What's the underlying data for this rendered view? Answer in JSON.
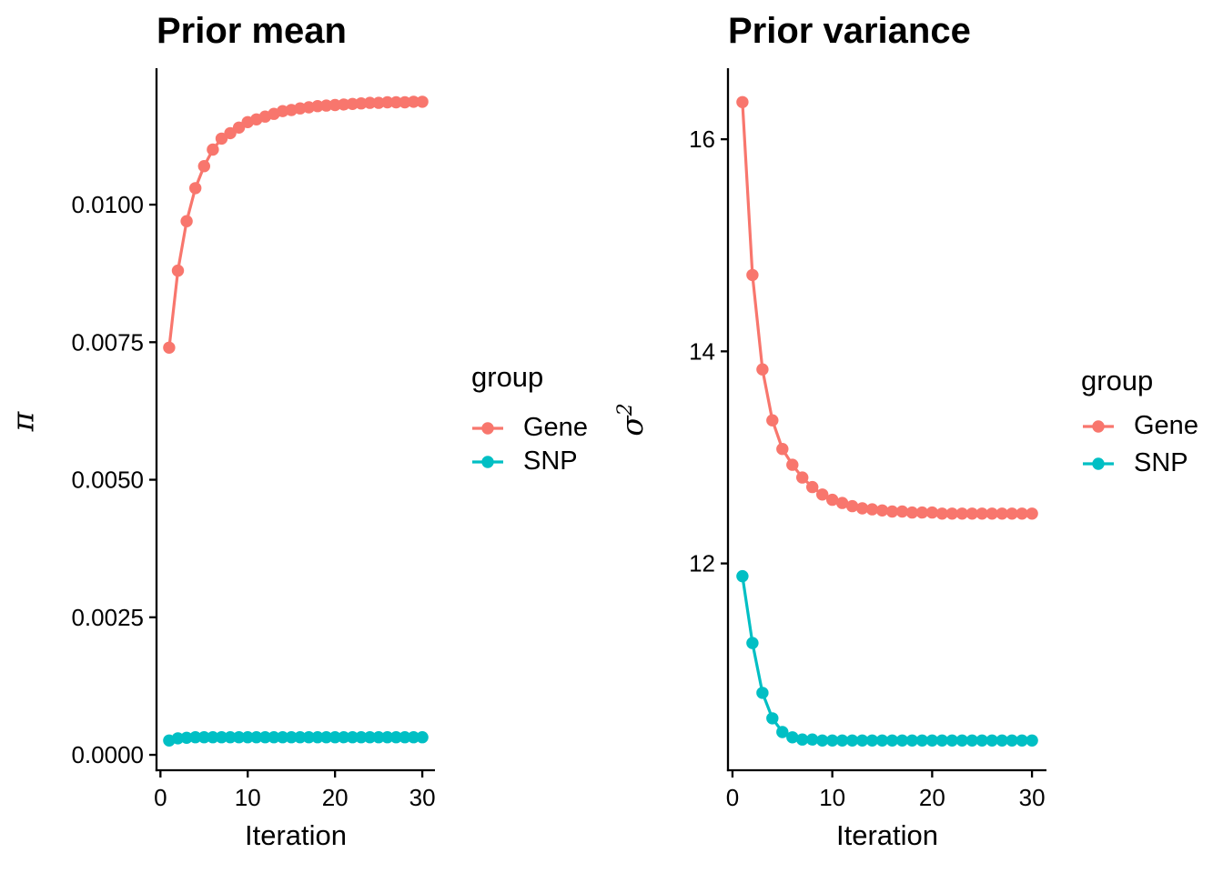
{
  "figure": {
    "background": "#FFFFFF",
    "text_color": "#000000",
    "axis_color": "#000000"
  },
  "chart_data": [
    {
      "type": "line",
      "title": "Prior mean",
      "xlabel": "Iteration",
      "ylabel": "π",
      "ylabel_exponent": "",
      "legend_title": "group",
      "legend_position": "right",
      "grid": false,
      "x": [
        1,
        2,
        3,
        4,
        5,
        6,
        7,
        8,
        9,
        10,
        11,
        12,
        13,
        14,
        15,
        16,
        17,
        18,
        19,
        20,
        21,
        22,
        23,
        24,
        25,
        26,
        27,
        28,
        29,
        30
      ],
      "series": [
        {
          "name": "Gene",
          "color": "#F8766D",
          "values": [
            0.0074,
            0.0088,
            0.0097,
            0.0103,
            0.0107,
            0.011,
            0.0112,
            0.0113,
            0.0114,
            0.0115,
            0.01155,
            0.0116,
            0.01165,
            0.0117,
            0.01172,
            0.01175,
            0.01177,
            0.01179,
            0.0118,
            0.01181,
            0.01182,
            0.01183,
            0.01184,
            0.01185,
            0.01185,
            0.01186,
            0.01186,
            0.01186,
            0.01187,
            0.01187
          ]
        },
        {
          "name": "SNP",
          "color": "#00BFC4",
          "values": [
            0.00026,
            0.0003,
            0.00031,
            0.00032,
            0.00032,
            0.00032,
            0.00032,
            0.00032,
            0.00032,
            0.00032,
            0.00032,
            0.00032,
            0.00032,
            0.00032,
            0.00032,
            0.00032,
            0.00032,
            0.00032,
            0.00032,
            0.00032,
            0.00032,
            0.00032,
            0.00032,
            0.00032,
            0.00032,
            0.00032,
            0.00032,
            0.00032,
            0.00032,
            0.00032
          ]
        }
      ],
      "xlim": [
        -0.45,
        31.45
      ],
      "ylim": [
        -0.00028,
        0.01248
      ],
      "xticks": [
        0,
        10,
        20,
        30
      ],
      "xtick_labels": [
        "0",
        "10",
        "20",
        "30"
      ],
      "yticks": [
        0.0,
        0.0025,
        0.005,
        0.0075,
        0.01
      ],
      "ytick_labels": [
        "0.0000",
        "0.0025",
        "0.0050",
        "0.0075",
        "0.0100"
      ]
    },
    {
      "type": "line",
      "title": "Prior variance",
      "xlabel": "Iteration",
      "ylabel": "σ",
      "ylabel_exponent": "2",
      "legend_title": "group",
      "legend_position": "right",
      "grid": false,
      "x": [
        1,
        2,
        3,
        4,
        5,
        6,
        7,
        8,
        9,
        10,
        11,
        12,
        13,
        14,
        15,
        16,
        17,
        18,
        19,
        20,
        21,
        22,
        23,
        24,
        25,
        26,
        27,
        28,
        29,
        30
      ],
      "series": [
        {
          "name": "Gene",
          "color": "#F8766D",
          "values": [
            16.35,
            14.72,
            13.83,
            13.35,
            13.08,
            12.93,
            12.81,
            12.72,
            12.65,
            12.6,
            12.57,
            12.54,
            12.52,
            12.51,
            12.5,
            12.49,
            12.49,
            12.48,
            12.48,
            12.48,
            12.47,
            12.47,
            12.47,
            12.47,
            12.47,
            12.47,
            12.47,
            12.47,
            12.47,
            12.47
          ]
        },
        {
          "name": "SNP",
          "color": "#00BFC4",
          "values": [
            11.88,
            11.25,
            10.78,
            10.54,
            10.41,
            10.36,
            10.34,
            10.34,
            10.33,
            10.33,
            10.33,
            10.33,
            10.33,
            10.33,
            10.33,
            10.33,
            10.33,
            10.33,
            10.33,
            10.33,
            10.33,
            10.33,
            10.33,
            10.33,
            10.33,
            10.33,
            10.33,
            10.33,
            10.33,
            10.33
          ]
        }
      ],
      "xlim": [
        -0.45,
        31.45
      ],
      "ylim": [
        10.05,
        16.67
      ],
      "xticks": [
        0,
        10,
        20,
        30
      ],
      "xtick_labels": [
        "0",
        "10",
        "20",
        "30"
      ],
      "yticks": [
        12,
        14,
        16
      ],
      "ytick_labels": [
        "12",
        "14",
        "16"
      ]
    }
  ],
  "legends": [
    {
      "title": "group",
      "entries": [
        {
          "label": "Gene",
          "color": "#F8766D"
        },
        {
          "label": "SNP",
          "color": "#00BFC4"
        }
      ]
    },
    {
      "title": "group",
      "entries": [
        {
          "label": "Gene",
          "color": "#F8766D"
        },
        {
          "label": "SNP",
          "color": "#00BFC4"
        }
      ]
    }
  ]
}
